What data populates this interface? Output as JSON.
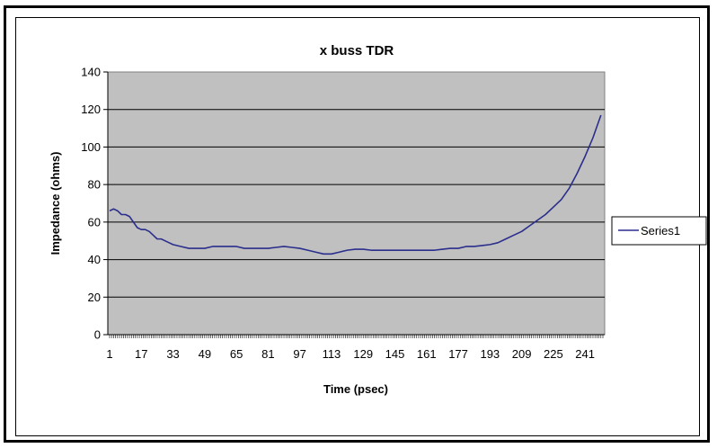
{
  "chart_data": {
    "type": "line",
    "title": "x buss TDR",
    "xlabel": "Time (psec)",
    "ylabel": "Impedance (ohms)",
    "ylim": [
      0,
      140
    ],
    "yticks": [
      0,
      20,
      40,
      60,
      80,
      100,
      120,
      140
    ],
    "xlim": [
      1,
      250
    ],
    "xticks": [
      1,
      17,
      33,
      49,
      65,
      81,
      97,
      113,
      129,
      145,
      161,
      177,
      193,
      209,
      225,
      241
    ],
    "grid": "horizontal",
    "legend_position": "right",
    "colors": {
      "plot_bg": "#c0c0c0",
      "line": "#2a2e8c",
      "grid": "#000000"
    },
    "series": [
      {
        "name": "Series1",
        "x": [
          1,
          3,
          5,
          7,
          9,
          11,
          13,
          15,
          17,
          19,
          21,
          23,
          25,
          27,
          29,
          31,
          33,
          37,
          41,
          45,
          49,
          53,
          57,
          61,
          65,
          69,
          73,
          77,
          81,
          85,
          89,
          93,
          97,
          101,
          105,
          109,
          113,
          117,
          121,
          125,
          129,
          133,
          137,
          141,
          145,
          149,
          153,
          157,
          161,
          165,
          169,
          173,
          177,
          181,
          185,
          189,
          193,
          197,
          201,
          205,
          209,
          213,
          217,
          221,
          225,
          229,
          233,
          237,
          241,
          245,
          249
        ],
        "values": [
          66,
          67,
          66,
          64,
          64,
          63,
          60,
          57,
          56,
          56,
          55,
          53,
          51,
          51,
          50,
          49,
          48,
          47,
          46,
          46,
          46,
          47,
          47,
          47,
          47,
          46,
          46,
          46,
          46,
          46.5,
          47,
          46.5,
          46,
          45,
          44,
          43,
          43,
          44,
          45,
          45.5,
          45.5,
          45,
          45,
          45,
          45,
          45,
          45,
          45,
          45,
          45,
          45.5,
          46,
          46,
          47,
          47,
          47.5,
          48,
          49,
          51,
          53,
          55,
          58,
          61,
          64,
          68,
          72,
          78,
          86,
          95,
          105,
          117
        ]
      }
    ]
  }
}
